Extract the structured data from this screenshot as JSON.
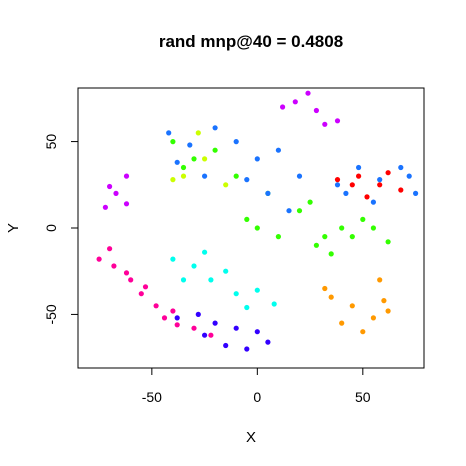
{
  "chart_data": {
    "type": "scatter",
    "title": "rand mnp@40 = 0.4808",
    "xlabel": "X",
    "ylabel": "Y",
    "xlim": [
      -85,
      79
    ],
    "ylim": [
      -81,
      81
    ],
    "xticks": [
      -50,
      0,
      50
    ],
    "xtick_labels": [
      "-50",
      "0",
      "50"
    ],
    "yticks": [
      -50,
      0,
      50
    ],
    "ytick_labels": [
      "-50",
      "0",
      "50"
    ],
    "grid": false,
    "legend": "none",
    "marker": "filled-circle",
    "clusters": [
      {
        "color": "#cc00ff",
        "x": [
          -67,
          -72,
          -62,
          -62,
          -70
        ],
        "y": [
          20,
          12,
          30,
          14,
          24
        ]
      },
      {
        "color": "#cc00ff",
        "x": [
          18,
          32,
          12,
          28,
          24,
          38
        ],
        "y": [
          73,
          60,
          70,
          68,
          78,
          62
        ]
      },
      {
        "color": "#ff0099",
        "x": [
          -75,
          -68,
          -60,
          -55,
          -48,
          -44,
          -38,
          -30,
          -22
        ],
        "y": [
          -18,
          -22,
          -30,
          -38,
          -45,
          -52,
          -56,
          -58,
          -62
        ]
      },
      {
        "color": "#ff0099",
        "x": [
          -70,
          -62,
          -53,
          -40
        ],
        "y": [
          -12,
          -26,
          -34,
          -48
        ]
      },
      {
        "color": "#00ffee",
        "x": [
          -40,
          -30,
          -22,
          -35,
          -15,
          -25
        ],
        "y": [
          -18,
          -22,
          -30,
          -30,
          -25,
          -14
        ]
      },
      {
        "color": "#00ffee",
        "x": [
          -10,
          0,
          8,
          -5
        ],
        "y": [
          -38,
          -36,
          -44,
          -46
        ]
      },
      {
        "color": "#3300ff",
        "x": [
          -25,
          -15,
          -5,
          5,
          -20,
          -10,
          0,
          -28,
          -38
        ],
        "y": [
          -62,
          -68,
          -70,
          -66,
          -55,
          -58,
          -60,
          -50,
          -52
        ]
      },
      {
        "color": "#ff9900",
        "x": [
          35,
          45,
          55,
          62,
          40,
          50,
          60,
          32,
          58
        ],
        "y": [
          -40,
          -45,
          -52,
          -48,
          -55,
          -60,
          -42,
          -35,
          -30
        ]
      },
      {
        "color": "#33ff00",
        "x": [
          28,
          35,
          45,
          55,
          62,
          40,
          50,
          32
        ],
        "y": [
          -10,
          -15,
          -5,
          0,
          -8,
          0,
          5,
          -5
        ]
      },
      {
        "color": "#33ff00",
        "x": [
          -5,
          0,
          10,
          20,
          25,
          5
        ],
        "y": [
          5,
          0,
          -5,
          10,
          15,
          20
        ]
      },
      {
        "color": "#33ff00",
        "x": [
          -40,
          -30,
          -20,
          -10,
          -35
        ],
        "y": [
          50,
          40,
          45,
          30,
          35
        ]
      },
      {
        "color": "#ccff00",
        "x": [
          -35,
          -25,
          -15,
          -28,
          -40
        ],
        "y": [
          30,
          40,
          25,
          55,
          28
        ]
      },
      {
        "color": "#1a73ff",
        "x": [
          -42,
          -32,
          -20,
          -10,
          0,
          10,
          20,
          -38,
          -25,
          5,
          15,
          -5
        ],
        "y": [
          55,
          48,
          58,
          50,
          40,
          45,
          30,
          38,
          30,
          20,
          10,
          28
        ]
      },
      {
        "color": "#1a73ff",
        "x": [
          38,
          48,
          58,
          68,
          75,
          42,
          55,
          72
        ],
        "y": [
          25,
          35,
          28,
          35,
          20,
          20,
          15,
          30
        ]
      },
      {
        "color": "#ff0000",
        "x": [
          38,
          48,
          58,
          68,
          52,
          62,
          45
        ],
        "y": [
          28,
          30,
          25,
          22,
          18,
          32,
          25
        ]
      }
    ]
  }
}
